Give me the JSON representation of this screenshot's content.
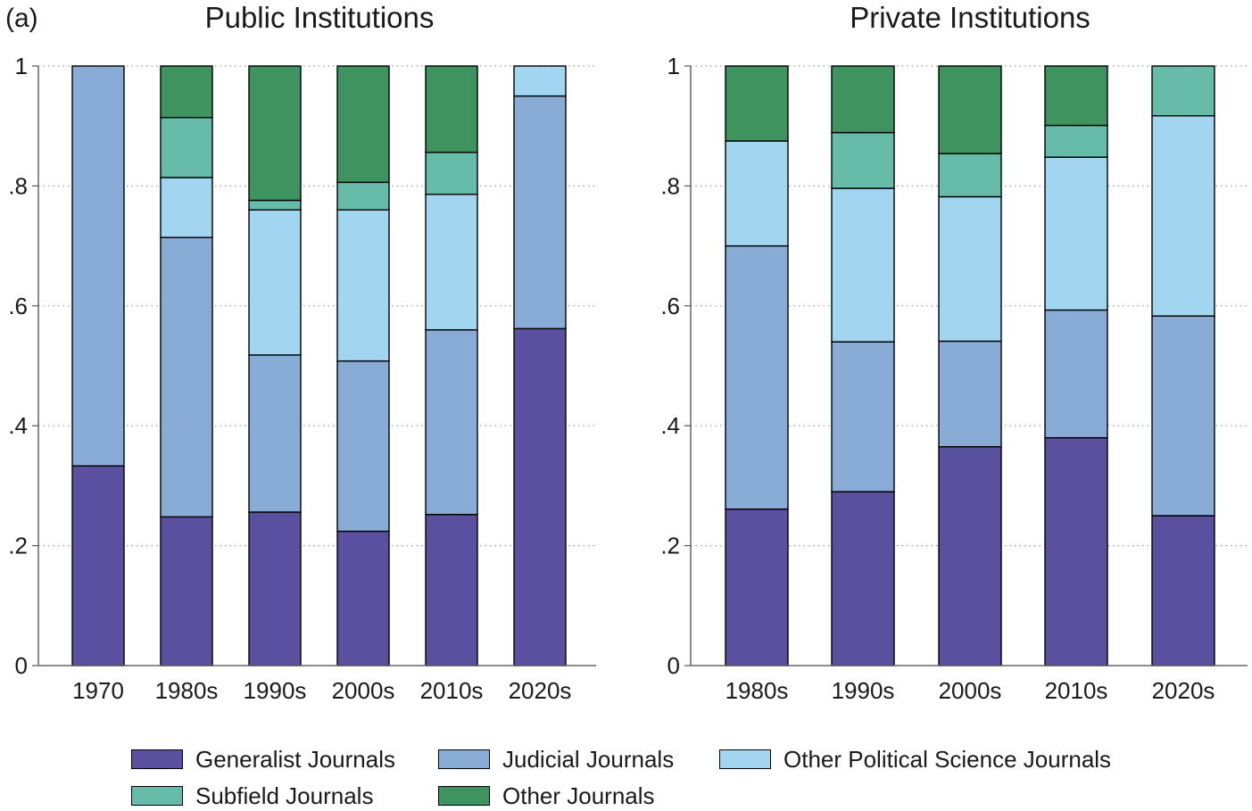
{
  "panel_tag": "(a)",
  "colors": {
    "generalist": "#5b4fa0",
    "judicial": "#88acd6",
    "other_polisci": "#a2d6f0",
    "subfield": "#67bba9",
    "other": "#3f935e"
  },
  "legend": [
    {
      "key": "generalist",
      "label": "Generalist Journals"
    },
    {
      "key": "judicial",
      "label": "Judicial Journals"
    },
    {
      "key": "other_polisci",
      "label": "Other Political Science Journals"
    },
    {
      "key": "subfield",
      "label": "Subfield Journals"
    },
    {
      "key": "other",
      "label": "Other Journals"
    }
  ],
  "chart_data": [
    {
      "type": "bar",
      "stacked": true,
      "title": "Public Institutions",
      "categories": [
        "1970",
        "1980s",
        "1990s",
        "2000s",
        "2010s",
        "2020s"
      ],
      "ylim": [
        0,
        1
      ],
      "yticks": [
        {
          "value": 0,
          "label": "0"
        },
        {
          "value": 0.2,
          "label": ".2"
        },
        {
          "value": 0.4,
          "label": ".4"
        },
        {
          "value": 0.6,
          "label": ".6"
        },
        {
          "value": 0.8,
          "label": ".8"
        },
        {
          "value": 1,
          "label": "1"
        }
      ],
      "grid": true,
      "series": [
        {
          "key": "generalist",
          "name": "Generalist Journals",
          "values": [
            0.333,
            0.248,
            0.256,
            0.224,
            0.252,
            0.562
          ]
        },
        {
          "key": "judicial",
          "name": "Judicial Journals",
          "values": [
            0.667,
            0.466,
            0.262,
            0.284,
            0.308,
            0.388
          ]
        },
        {
          "key": "other_polisci",
          "name": "Other Political Science Journals",
          "values": [
            0.0,
            0.1,
            0.242,
            0.252,
            0.226,
            0.05
          ]
        },
        {
          "key": "subfield",
          "name": "Subfield Journals",
          "values": [
            0.0,
            0.1,
            0.016,
            0.046,
            0.07,
            0.0
          ]
        },
        {
          "key": "other",
          "name": "Other Journals",
          "values": [
            0.0,
            0.086,
            0.224,
            0.194,
            0.144,
            0.0
          ]
        }
      ]
    },
    {
      "type": "bar",
      "stacked": true,
      "title": "Private Institutions",
      "categories": [
        "1980s",
        "1990s",
        "2000s",
        "2010s",
        "2020s"
      ],
      "ylim": [
        0,
        1
      ],
      "yticks": [
        {
          "value": 0,
          "label": "0"
        },
        {
          "value": 0.2,
          "label": ".2"
        },
        {
          "value": 0.4,
          "label": ".4"
        },
        {
          "value": 0.6,
          "label": ".6"
        },
        {
          "value": 0.8,
          "label": ".8"
        },
        {
          "value": 1,
          "label": "1"
        }
      ],
      "grid": true,
      "series": [
        {
          "key": "generalist",
          "name": "Generalist Journals",
          "values": [
            0.261,
            0.29,
            0.365,
            0.38,
            0.25
          ]
        },
        {
          "key": "judicial",
          "name": "Judicial Journals",
          "values": [
            0.439,
            0.25,
            0.176,
            0.213,
            0.333
          ]
        },
        {
          "key": "other_polisci",
          "name": "Other Political Science Journals",
          "values": [
            0.175,
            0.256,
            0.241,
            0.255,
            0.334
          ]
        },
        {
          "key": "subfield",
          "name": "Subfield Journals",
          "values": [
            0.0,
            0.093,
            0.072,
            0.053,
            0.083
          ]
        },
        {
          "key": "other",
          "name": "Other Journals",
          "values": [
            0.125,
            0.111,
            0.146,
            0.099,
            0.0
          ]
        }
      ]
    }
  ]
}
